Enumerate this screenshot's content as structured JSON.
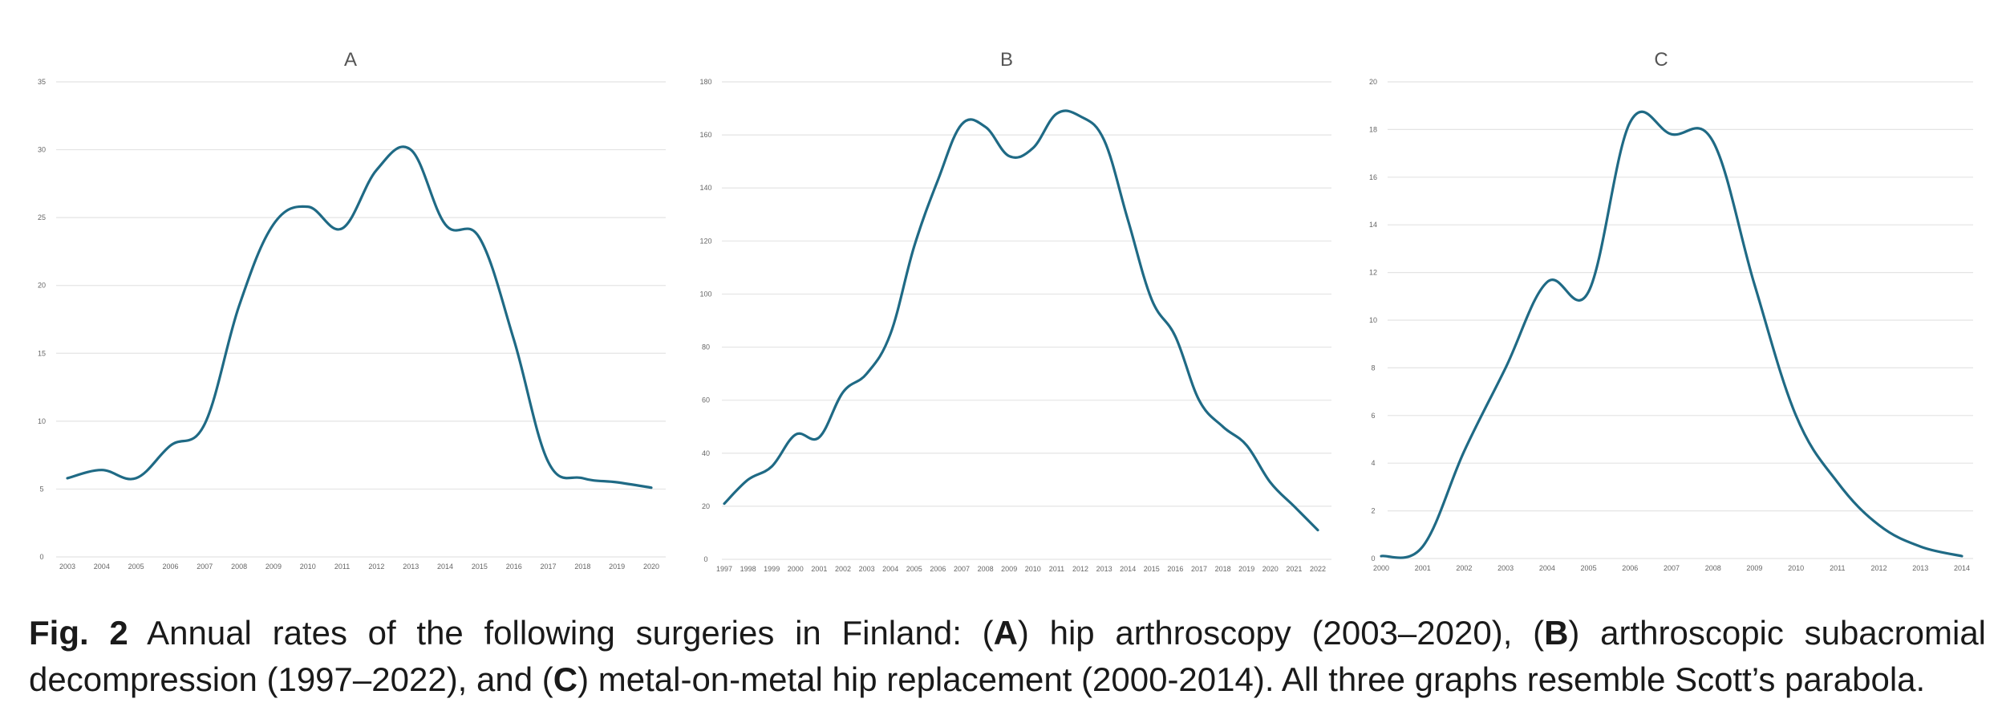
{
  "chart_data": [
    {
      "type": "line",
      "title": "A",
      "x": [
        "2003",
        "2004",
        "2005",
        "2006",
        "2007",
        "2008",
        "2009",
        "2010",
        "2011",
        "2012",
        "2013",
        "2014",
        "2015",
        "2016",
        "2017",
        "2018",
        "2019",
        "2020"
      ],
      "values": [
        5.8,
        6.4,
        5.8,
        8.2,
        9.8,
        18.5,
        24.5,
        25.8,
        24.2,
        28.5,
        30.0,
        24.5,
        23.5,
        16.0,
        7.0,
        5.8,
        5.5,
        5.1
      ],
      "ylim": [
        0,
        35
      ],
      "yticks": [
        "0",
        "5",
        "10",
        "15",
        "20",
        "25",
        "30",
        "35"
      ],
      "grid": true,
      "color": "#1f6a85"
    },
    {
      "type": "line",
      "title": "B",
      "x": [
        "1997",
        "1998",
        "1999",
        "2000",
        "2001",
        "2002",
        "2003",
        "2004",
        "2005",
        "2006",
        "2007",
        "2008",
        "2009",
        "2010",
        "2011",
        "2012",
        "2013",
        "2014",
        "2015",
        "2016",
        "2017",
        "2018",
        "2019",
        "2020",
        "2021",
        "2022"
      ],
      "values": [
        21,
        30,
        35,
        47,
        46,
        63,
        70,
        85,
        118,
        143,
        164,
        163,
        152,
        155,
        168,
        167,
        158,
        128,
        98,
        84,
        60,
        50,
        43,
        29,
        20,
        11
      ],
      "ylim": [
        0,
        180
      ],
      "yticks": [
        "0",
        "20",
        "40",
        "60",
        "80",
        "100",
        "120",
        "140",
        "160",
        "180"
      ],
      "grid": true,
      "color": "#1f6a85"
    },
    {
      "type": "line",
      "title": "C",
      "x": [
        "2000",
        "2001",
        "2002",
        "2003",
        "2004",
        "2005",
        "2006",
        "2007",
        "2008",
        "2009",
        "2010",
        "2011",
        "2012",
        "2013",
        "2014"
      ],
      "values": [
        0.1,
        0.5,
        4.5,
        8.0,
        11.6,
        11.2,
        18.3,
        17.8,
        17.5,
        11.5,
        6.0,
        3.2,
        1.4,
        0.5,
        0.1
      ],
      "ylim": [
        0,
        20
      ],
      "yticks": [
        "0",
        "2",
        "4",
        "6",
        "8",
        "10",
        "12",
        "14",
        "16",
        "18",
        "20"
      ],
      "grid": true,
      "color": "#1f6a85"
    }
  ],
  "caption": {
    "fig_label": "Fig. 2",
    "p1": " Annual rates of the following surgeries in Finland: (",
    "a": "A",
    "p2": ") hip arthroscopy (2003–2020), (",
    "b": "B",
    "p3": ") arthroscopic subacromial decompression (1997–2022), and (",
    "c": "C",
    "p4": ") metal-on-metal hip replacement (2000-2014). All three graphs resemble Scott’s parabola."
  }
}
